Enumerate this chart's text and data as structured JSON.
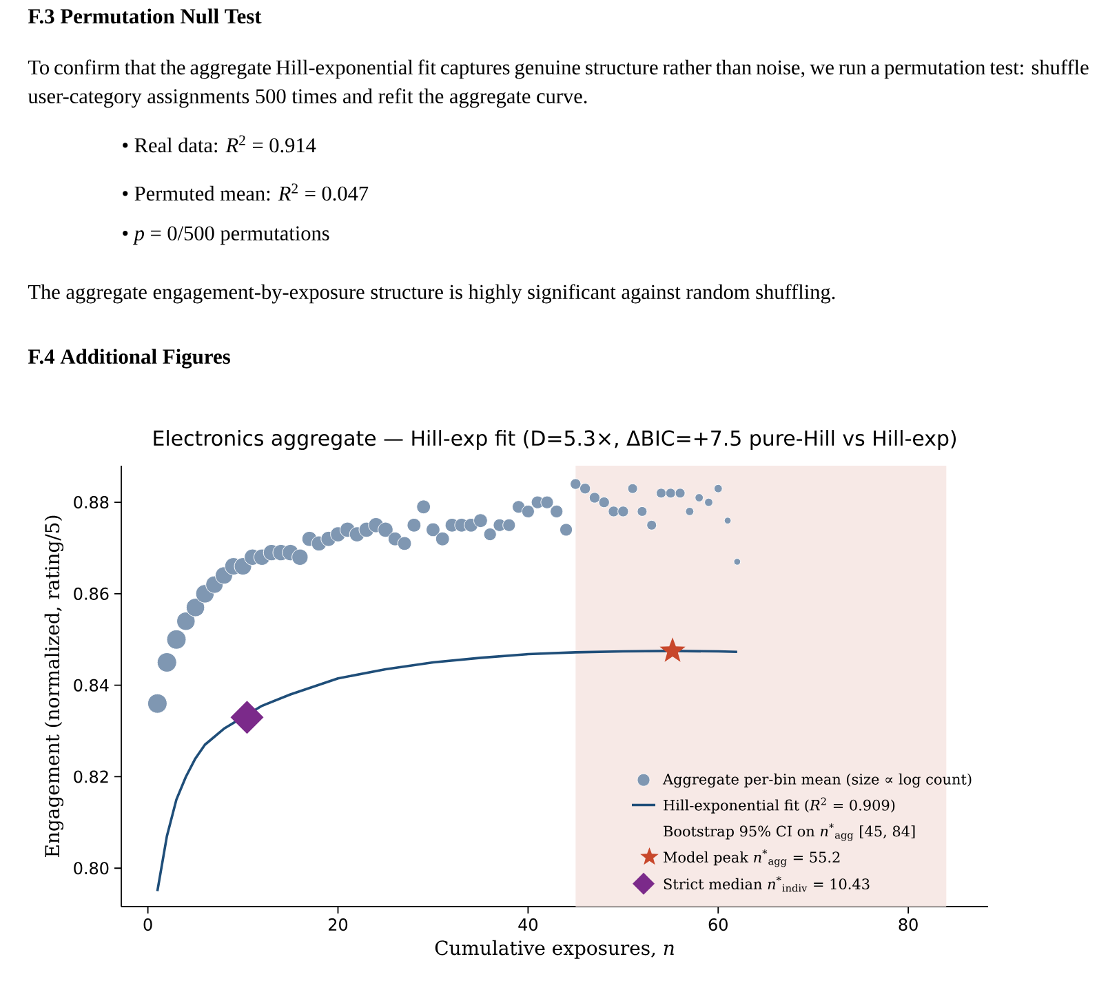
{
  "chart_data": {
    "type": "bubble",
    "title": "Electronics aggregate — Hill-exp fit (D=5.3×, ΔBIC=+7.5 pure-Hill vs Hill-exp)",
    "xlabel": "Cumulative exposures, *n*",
    "ylabel": "Engagement (normalized, rating/5)",
    "annotations": [
      "F.3  Permutation Null Test",
      "To confirm that the aggregate Hill-exponential fit captures genuine structure rather than noise, we run a permutation test: shuffle user-category assignments 500 times and refit the aggregate curve.",
      "•  Real data: *R*$^{2}$ = 0.914",
      "•  Permuted mean: *R*$^{2}$ = 0.047",
      "•  *p* = 0/500 permutations",
      "The aggregate engagement-by-exposure structure is highly significant against random shuffling.",
      "F.4  Additional Figures"
    ],
    "xlim": [
      -2.8,
      88.4
    ],
    "ylim": [
      0.7916,
      0.888
    ],
    "xticks": [
      0,
      20,
      40,
      60,
      80
    ],
    "yticks": [
      {
        "value": 0.8,
        "label": "0.80"
      },
      {
        "value": 0.82,
        "label": "0.82"
      },
      {
        "value": 0.84,
        "label": "0.84"
      },
      {
        "value": 0.86,
        "label": "0.86"
      },
      {
        "value": 0.88,
        "label": "0.88"
      }
    ],
    "legend": "bottom right",
    "bands": [
      {
        "axis": "x",
        "from": 45,
        "to": 84,
        "label": "Bootstrap 95% CI on *n*$^{*}$$_{agg}$ [45, 84]",
        "color": "#f7e9e6"
      }
    ],
    "series": [
      {
        "name": "Aggregate per-bin mean (size ∝ log count)",
        "marker": "circle",
        "color": "#7f97b2",
        "x": [
          1,
          2,
          3,
          4,
          5,
          6,
          7,
          8,
          9,
          10,
          11,
          12,
          13,
          14,
          15,
          16,
          17,
          18,
          19,
          20,
          21,
          22,
          23,
          24,
          25,
          26,
          27,
          28,
          29,
          30,
          31,
          32,
          33,
          34,
          35,
          36,
          37,
          38,
          39,
          40,
          41,
          42,
          43,
          44,
          45,
          46,
          47,
          48,
          49,
          50,
          51,
          52,
          53,
          54,
          55,
          56,
          57,
          58,
          59,
          60,
          61,
          62
        ],
        "values": [
          0.836,
          0.845,
          0.85,
          0.854,
          0.857,
          0.86,
          0.862,
          0.864,
          0.866,
          0.866,
          0.868,
          0.868,
          0.869,
          0.869,
          0.869,
          0.868,
          0.872,
          0.871,
          0.872,
          0.873,
          0.874,
          0.873,
          0.874,
          0.875,
          0.874,
          0.872,
          0.871,
          0.875,
          0.879,
          0.874,
          0.872,
          0.875,
          0.875,
          0.875,
          0.876,
          0.873,
          0.875,
          0.875,
          0.879,
          0.878,
          0.88,
          0.88,
          0.878,
          0.874,
          0.884,
          0.883,
          0.881,
          0.88,
          0.878,
          0.878,
          0.883,
          0.878,
          0.875,
          0.882,
          0.882,
          0.882,
          0.878,
          0.881,
          0.88,
          0.883,
          0.876,
          0.867
        ],
        "sizes": [
          1,
          1,
          1,
          0.9,
          0.9,
          0.9,
          0.8,
          0.8,
          0.8,
          0.8,
          0.7,
          0.7,
          0.7,
          0.7,
          0.7,
          0.7,
          0.6,
          0.6,
          0.6,
          0.6,
          0.6,
          0.6,
          0.6,
          0.6,
          0.6,
          0.5,
          0.5,
          0.5,
          0.5,
          0.5,
          0.5,
          0.5,
          0.5,
          0.5,
          0.5,
          0.42,
          0.42,
          0.42,
          0.42,
          0.42,
          0.42,
          0.42,
          0.42,
          0.42,
          0.3,
          0.3,
          0.3,
          0.3,
          0.3,
          0.3,
          0.25,
          0.25,
          0.25,
          0.25,
          0.25,
          0.25,
          0.18,
          0.18,
          0.18,
          0.18,
          0.12,
          0.12
        ]
      },
      {
        "name": "Hill-exponential fit (*R*$^{2}$ = 0.909)",
        "type": "line",
        "color": "#1f4e79",
        "x": [
          1,
          2,
          3,
          4,
          5,
          6,
          8,
          10,
          12,
          15,
          20,
          25,
          30,
          35,
          40,
          45,
          50,
          55,
          60,
          62
        ],
        "values": [
          0.795,
          0.807,
          0.815,
          0.82,
          0.824,
          0.827,
          0.8305,
          0.833,
          0.8355,
          0.838,
          0.8415,
          0.8435,
          0.845,
          0.846,
          0.8468,
          0.8472,
          0.8474,
          0.8475,
          0.8474,
          0.8473
        ]
      },
      {
        "name": "Model peak *n*$^{*}$$_{agg}$ = 55.2",
        "type": "scatter",
        "marker": "star",
        "color": "#c8472b",
        "x": [
          55.2
        ],
        "values": [
          0.8475
        ]
      },
      {
        "name": "Strict median *n*$^{*}$$_{indiv}$ = 10.43",
        "type": "scatter",
        "marker": "diamond",
        "color": "#7b2a8a",
        "x": [
          10.43
        ],
        "values": [
          0.833
        ]
      }
    ]
  }
}
